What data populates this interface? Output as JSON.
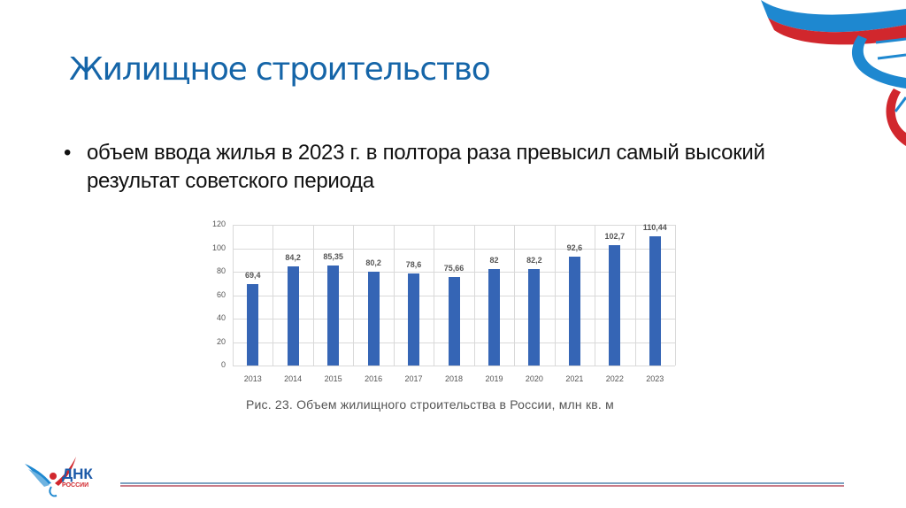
{
  "slide": {
    "title": "Жилищное строительство",
    "bullet_symbol": "•",
    "bullet_text": "объем ввода жилья в 2023 г. в полтора раза превысил самый высокий результат советского периода",
    "caption": "Рис. 23. Объем жилищного строительства в России, млн кв. м",
    "logo": {
      "name": "ДНК",
      "subtitle": "РОССИИ"
    },
    "colors": {
      "title": "#1565a8",
      "bar": "#3565b5",
      "ribbon_blue": "#1e88d0",
      "ribbon_red": "#d1272d"
    }
  },
  "chart_data": {
    "type": "bar",
    "title": "Рис. 23. Объем жилищного строительства в России, млн кв. м",
    "xlabel": "",
    "ylabel": "",
    "categories": [
      "2013",
      "2014",
      "2015",
      "2016",
      "2017",
      "2018",
      "2019",
      "2020",
      "2021",
      "2022",
      "2023"
    ],
    "values": [
      69.4,
      84.2,
      85.35,
      80.2,
      78.6,
      75.66,
      82,
      82.2,
      92.6,
      102.7,
      110.44
    ],
    "data_labels": [
      "69,4",
      "84,2",
      "85,35",
      "80,2",
      "78,6",
      "75,66",
      "82",
      "82,2",
      "92,6",
      "102,7",
      "110,44"
    ],
    "ylim": [
      0,
      120
    ],
    "yticks": [
      "0",
      "20",
      "40",
      "60",
      "80",
      "100",
      "120"
    ],
    "grid": true,
    "legend": null
  }
}
